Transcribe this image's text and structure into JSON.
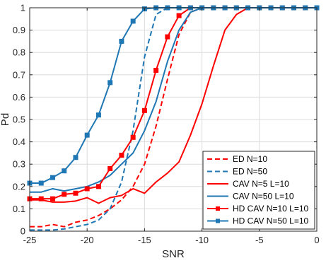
{
  "chart_data": {
    "type": "line",
    "title": "",
    "xlabel": "SNR",
    "ylabel": "Pd",
    "xlim": [
      -25,
      0
    ],
    "ylim": [
      0,
      1
    ],
    "grid": true,
    "x_ticks": [
      -25,
      -20,
      -15,
      -10,
      -5,
      0
    ],
    "x_tick_labels": [
      "-25",
      "-20",
      "-15",
      "-10",
      "-5",
      "0"
    ],
    "y_ticks": [
      0,
      0.1,
      0.2,
      0.3,
      0.4,
      0.5,
      0.6,
      0.7,
      0.8,
      0.9,
      1
    ],
    "y_tick_labels": [
      "0",
      "0.1",
      "0.2",
      "0.3",
      "0.4",
      "0.5",
      "0.6",
      "0.7",
      "0.8",
      "0.9",
      "1"
    ],
    "legend_position": "bottom-right",
    "series": [
      {
        "name": "ED  N=10",
        "color": "#ff0000",
        "style": "dashed",
        "marker": "none",
        "x": [
          -25,
          -24,
          -23,
          -22,
          -21,
          -20,
          -19,
          -18,
          -17,
          -16,
          -15,
          -14,
          -13,
          -12,
          -11,
          -10,
          -9,
          -8,
          -7,
          -6,
          -5,
          -4,
          -3,
          -2,
          -1,
          0
        ],
        "y": [
          0.02,
          0.02,
          0.03,
          0.02,
          0.04,
          0.05,
          0.07,
          0.1,
          0.14,
          0.2,
          0.3,
          0.47,
          0.68,
          0.88,
          0.98,
          1,
          1,
          1,
          1,
          1,
          1,
          1,
          1,
          1,
          1,
          1
        ]
      },
      {
        "name": "ED  N=50",
        "color": "#1f77b4",
        "style": "dashed",
        "marker": "none",
        "x": [
          -25,
          -24,
          -23,
          -22,
          -21,
          -20,
          -19,
          -18,
          -17,
          -16,
          -15,
          -14,
          -13,
          -12,
          -11,
          -10,
          -9,
          -8,
          -7,
          -6,
          -5,
          -4,
          -3,
          -2,
          -1,
          0
        ],
        "y": [
          0.005,
          0.005,
          0.005,
          0.01,
          0.02,
          0.03,
          0.05,
          0.1,
          0.22,
          0.45,
          0.78,
          0.97,
          1,
          1,
          1,
          1,
          1,
          1,
          1,
          1,
          1,
          1,
          1,
          1,
          1,
          1
        ]
      },
      {
        "name": "CAV  N=5  L=10",
        "color": "#ff0000",
        "style": "solid",
        "marker": "none",
        "x": [
          -25,
          -24,
          -23,
          -22,
          -21,
          -20,
          -19,
          -18,
          -17,
          -16,
          -15,
          -14,
          -13,
          -12,
          -11,
          -10,
          -9,
          -8,
          -7,
          -6,
          -5,
          -4,
          -3,
          -2,
          -1,
          0
        ],
        "y": [
          0.14,
          0.14,
          0.13,
          0.13,
          0.135,
          0.15,
          0.125,
          0.15,
          0.16,
          0.19,
          0.17,
          0.22,
          0.26,
          0.31,
          0.43,
          0.57,
          0.74,
          0.9,
          0.97,
          1,
          1,
          1,
          1,
          1,
          1,
          1
        ]
      },
      {
        "name": "CAV  N=50  L=10",
        "color": "#1f77b4",
        "style": "solid",
        "marker": "none",
        "x": [
          -25,
          -24,
          -23,
          -22,
          -21,
          -20,
          -19,
          -18,
          -17,
          -16,
          -15,
          -14,
          -13,
          -12,
          -11,
          -10,
          -9,
          -8,
          -7,
          -6,
          -5,
          -4,
          -3,
          -2,
          -1,
          0
        ],
        "y": [
          0.175,
          0.175,
          0.19,
          0.18,
          0.19,
          0.2,
          0.22,
          0.25,
          0.3,
          0.35,
          0.45,
          0.58,
          0.76,
          0.9,
          0.98,
          1,
          1,
          1,
          1,
          1,
          1,
          1,
          1,
          1,
          1,
          1
        ]
      },
      {
        "name": "HD CAV  N=10  L=10",
        "color": "#ff0000",
        "style": "solid",
        "marker": "square",
        "x": [
          -25,
          -24,
          -23,
          -22,
          -21,
          -20,
          -19,
          -18,
          -17,
          -16,
          -15,
          -14,
          -13,
          -12,
          -11,
          -10,
          -9,
          -8,
          -7,
          -6,
          -5,
          -4,
          -3,
          -2,
          -1,
          0
        ],
        "y": [
          0.145,
          0.145,
          0.145,
          0.165,
          0.17,
          0.19,
          0.2,
          0.28,
          0.34,
          0.42,
          0.54,
          0.72,
          0.87,
          0.965,
          1,
          1,
          1,
          1,
          1,
          1,
          1,
          1,
          1,
          1,
          1,
          1
        ]
      },
      {
        "name": "HD CAV  N=50  L=10",
        "color": "#1f77b4",
        "style": "solid",
        "marker": "square",
        "x": [
          -25,
          -24,
          -23,
          -22,
          -21,
          -20,
          -19,
          -18,
          -17,
          -16,
          -15,
          -14,
          -13,
          -12,
          -11,
          -10,
          -9,
          -8,
          -7,
          -6,
          -5,
          -4,
          -3,
          -2,
          -1,
          0
        ],
        "y": [
          0.215,
          0.215,
          0.24,
          0.27,
          0.33,
          0.43,
          0.52,
          0.665,
          0.85,
          0.94,
          0.995,
          1,
          1,
          1,
          1,
          1,
          1,
          1,
          1,
          1,
          1,
          1,
          1,
          1,
          1,
          1
        ]
      }
    ]
  }
}
